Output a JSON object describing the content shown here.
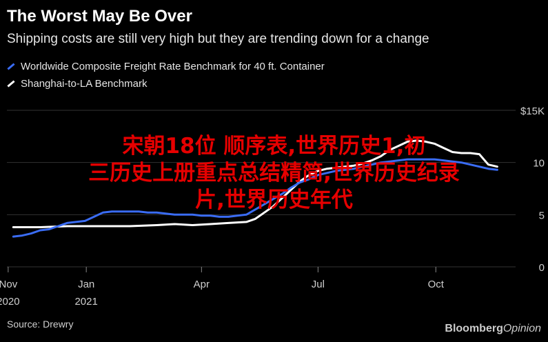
{
  "header": {
    "title": "The Worst May Be Over",
    "subtitle": "Shipping costs are still very high but they are trending down for a change"
  },
  "overlay_text": {
    "line1": "宋朝18位 顺序表,世界历史1,初",
    "line2": "三历史上册重点总结精简,世界历史纪录",
    "line3": "片,世界历史年代"
  },
  "footer": {
    "source": "Source: Drewry",
    "brand_main": "Bloomberg",
    "brand_opinion": "Opinion"
  },
  "colors": {
    "blue": "#3a6cf4",
    "white": "#ffffff",
    "overlay": "#e60000",
    "grid": "#333333"
  },
  "chart_data": {
    "type": "line",
    "title": "The Worst May Be Over",
    "subtitle": "Shipping costs are still very high but they are trending down for a change",
    "ylim": [
      0,
      15
    ],
    "y_ticks": [
      {
        "value": 15,
        "label": "$15K"
      },
      {
        "value": 10,
        "label": "10"
      },
      {
        "value": 5,
        "label": "5"
      },
      {
        "value": 0,
        "label": "0"
      }
    ],
    "x_ticks": [
      {
        "x": "2020-11-01",
        "label": "Nov",
        "sublabel": "2020"
      },
      {
        "x": "2021-01-01",
        "label": "Jan",
        "sublabel": "2021"
      },
      {
        "x": "2021-04-01",
        "label": "Apr",
        "sublabel": ""
      },
      {
        "x": "2021-07-01",
        "label": "Jul",
        "sublabel": ""
      },
      {
        "x": "2021-10-01",
        "label": "Oct",
        "sublabel": ""
      }
    ],
    "series": [
      {
        "name": "Worldwide Composite Freight Rate Benchmark for 40 ft. Container",
        "color": "#3a6cf4",
        "points": [
          [
            "2020-11-05",
            2.9
          ],
          [
            "2020-11-12",
            3.0
          ],
          [
            "2020-11-19",
            3.2
          ],
          [
            "2020-11-26",
            3.5
          ],
          [
            "2020-12-03",
            3.6
          ],
          [
            "2020-12-10",
            3.9
          ],
          [
            "2020-12-17",
            4.2
          ],
          [
            "2020-12-24",
            4.3
          ],
          [
            "2020-12-31",
            4.4
          ],
          [
            "2021-01-07",
            4.8
          ],
          [
            "2021-01-14",
            5.2
          ],
          [
            "2021-01-21",
            5.3
          ],
          [
            "2021-01-28",
            5.3
          ],
          [
            "2021-02-04",
            5.3
          ],
          [
            "2021-02-11",
            5.3
          ],
          [
            "2021-02-18",
            5.2
          ],
          [
            "2021-02-25",
            5.2
          ],
          [
            "2021-03-04",
            5.1
          ],
          [
            "2021-03-11",
            5.0
          ],
          [
            "2021-03-18",
            5.0
          ],
          [
            "2021-03-25",
            5.0
          ],
          [
            "2021-04-01",
            4.9
          ],
          [
            "2021-04-08",
            4.9
          ],
          [
            "2021-04-15",
            4.8
          ],
          [
            "2021-04-22",
            4.8
          ],
          [
            "2021-04-29",
            4.9
          ],
          [
            "2021-05-06",
            5.0
          ],
          [
            "2021-05-13",
            5.5
          ],
          [
            "2021-05-20",
            6.0
          ],
          [
            "2021-05-27",
            6.5
          ],
          [
            "2021-06-03",
            7.0
          ],
          [
            "2021-06-10",
            7.6
          ],
          [
            "2021-06-17",
            8.1
          ],
          [
            "2021-06-24",
            8.4
          ],
          [
            "2021-07-01",
            8.8
          ],
          [
            "2021-07-08",
            9.0
          ],
          [
            "2021-07-15",
            9.2
          ],
          [
            "2021-07-22",
            9.3
          ],
          [
            "2021-07-29",
            9.4
          ],
          [
            "2021-08-05",
            9.6
          ],
          [
            "2021-08-12",
            9.8
          ],
          [
            "2021-08-19",
            10.0
          ],
          [
            "2021-08-26",
            10.1
          ],
          [
            "2021-09-02",
            10.2
          ],
          [
            "2021-09-09",
            10.3
          ],
          [
            "2021-09-16",
            10.3
          ],
          [
            "2021-09-23",
            10.3
          ],
          [
            "2021-09-30",
            10.3
          ],
          [
            "2021-10-07",
            10.2
          ],
          [
            "2021-10-14",
            10.1
          ],
          [
            "2021-10-21",
            10.0
          ],
          [
            "2021-10-28",
            9.8
          ],
          [
            "2021-11-04",
            9.6
          ],
          [
            "2021-11-11",
            9.4
          ],
          [
            "2021-11-18",
            9.3
          ]
        ]
      },
      {
        "name": "Shanghai-to-LA Benchmark",
        "color": "#ffffff",
        "points": [
          [
            "2020-11-05",
            3.8
          ],
          [
            "2020-11-26",
            3.8
          ],
          [
            "2020-12-17",
            3.9
          ],
          [
            "2020-12-31",
            3.9
          ],
          [
            "2021-01-14",
            3.9
          ],
          [
            "2021-02-04",
            3.9
          ],
          [
            "2021-02-25",
            4.0
          ],
          [
            "2021-03-11",
            4.1
          ],
          [
            "2021-03-25",
            4.0
          ],
          [
            "2021-04-08",
            4.1
          ],
          [
            "2021-04-22",
            4.2
          ],
          [
            "2021-05-06",
            4.3
          ],
          [
            "2021-05-13",
            4.6
          ],
          [
            "2021-05-20",
            5.2
          ],
          [
            "2021-05-27",
            5.8
          ],
          [
            "2021-06-03",
            6.6
          ],
          [
            "2021-06-10",
            7.4
          ],
          [
            "2021-06-17",
            8.2
          ],
          [
            "2021-06-24",
            8.8
          ],
          [
            "2021-07-01",
            9.2
          ],
          [
            "2021-07-08",
            9.4
          ],
          [
            "2021-07-15",
            9.5
          ],
          [
            "2021-07-22",
            9.6
          ],
          [
            "2021-07-29",
            9.7
          ],
          [
            "2021-08-05",
            9.9
          ],
          [
            "2021-08-12",
            10.2
          ],
          [
            "2021-08-19",
            10.6
          ],
          [
            "2021-08-26",
            11.2
          ],
          [
            "2021-09-02",
            11.6
          ],
          [
            "2021-09-09",
            12.0
          ],
          [
            "2021-09-16",
            12.1
          ],
          [
            "2021-09-23",
            12.0
          ],
          [
            "2021-09-30",
            11.8
          ],
          [
            "2021-10-07",
            11.4
          ],
          [
            "2021-10-14",
            11.0
          ],
          [
            "2021-10-21",
            10.9
          ],
          [
            "2021-10-28",
            10.9
          ],
          [
            "2021-11-04",
            10.8
          ],
          [
            "2021-11-11",
            9.8
          ],
          [
            "2021-11-18",
            9.6
          ]
        ]
      }
    ],
    "grid": true,
    "legend_position": "top-left"
  }
}
